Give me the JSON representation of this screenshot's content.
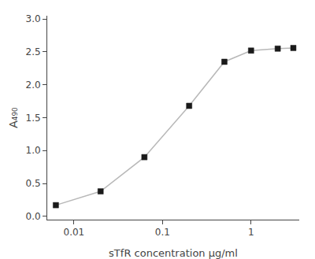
{
  "chart_data": {
    "type": "line",
    "x": [
      0.00625,
      0.02,
      0.0625,
      0.2,
      0.5,
      1.0,
      2.0,
      3.0
    ],
    "series": [
      {
        "type": "line",
        "color": "#b8b8b8",
        "values": [
          0.17,
          0.38,
          0.9,
          1.68,
          2.35,
          2.52,
          2.55,
          2.56
        ]
      },
      {
        "type": "scatter",
        "marker": "square",
        "color": "#1a1a1a",
        "values": [
          0.17,
          0.38,
          0.9,
          1.68,
          2.35,
          2.52,
          2.55,
          2.56
        ]
      }
    ],
    "xlabel": "sTfR concentration μg/ml",
    "ylabel": "A₄₉₀",
    "log": "x",
    "xlim": [
      0.005,
      3.5
    ],
    "xticks": [
      0.01,
      0.1,
      1
    ],
    "ylim": [
      -0.05,
      3.05
    ],
    "yticks": [
      {
        "value": 0,
        "label": "0.0"
      },
      0.5,
      {
        "value": 1,
        "label": "1.0"
      },
      1.5,
      {
        "value": 2,
        "label": "2.0"
      },
      2.5,
      {
        "value": 3,
        "label": "3.0"
      }
    ],
    "grid": false
  }
}
